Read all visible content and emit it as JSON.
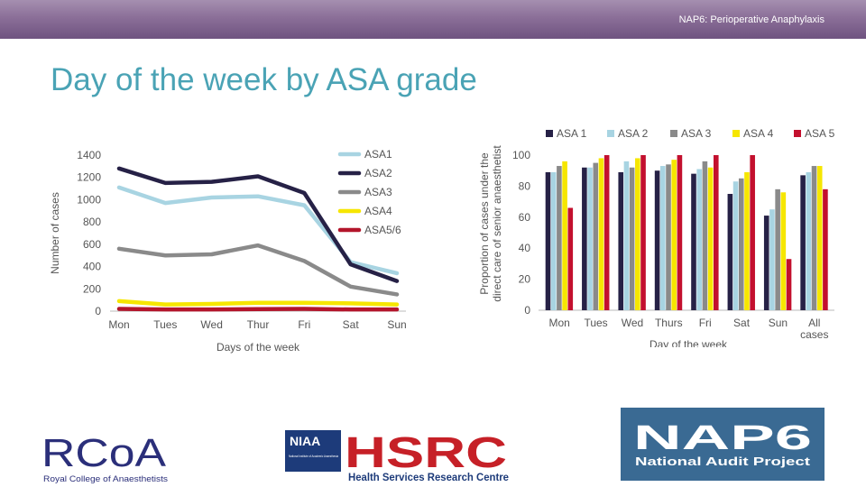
{
  "header": {
    "text": "NAP6: Perioperative Anaphylaxis"
  },
  "page": {
    "title": "Day of the week by ASA grade"
  },
  "chart_data": [
    {
      "type": "line",
      "title": "",
      "xlabel": "Days of the week",
      "ylabel": "Number of cases",
      "categories": [
        "Mon",
        "Tues",
        "Wed",
        "Thur",
        "Fri",
        "Sat",
        "Sun"
      ],
      "yticks": [
        "0",
        "200",
        "400",
        "600",
        "800",
        "1000",
        "1200",
        "1400"
      ],
      "ylim": [
        0,
        1400
      ],
      "legend_position": "top-right",
      "series": [
        {
          "name": "ASA1",
          "color": "#a8d4e2",
          "values": [
            1110,
            970,
            1020,
            1030,
            950,
            440,
            340
          ]
        },
        {
          "name": "ASA2",
          "color": "#262146",
          "values": [
            1280,
            1150,
            1160,
            1210,
            1060,
            420,
            270
          ]
        },
        {
          "name": "ASA3",
          "color": "#8a8a8a",
          "values": [
            560,
            500,
            510,
            590,
            450,
            220,
            150
          ]
        },
        {
          "name": "ASA4",
          "color": "#f6e600",
          "values": [
            90,
            60,
            65,
            75,
            75,
            70,
            60
          ]
        },
        {
          "name": "ASA5/6",
          "color": "#b3152b",
          "values": [
            20,
            15,
            15,
            18,
            20,
            15,
            15
          ]
        }
      ]
    },
    {
      "type": "bar",
      "title": "",
      "xlabel": "Day of the week",
      "ylabel": "Proportion of cases under the direct care of senior anaesthetist",
      "ylabel_lines": [
        "Proportion of cases under the",
        "direct care of senior anaesthetist"
      ],
      "categories": [
        "Mon",
        "Tues",
        "Wed",
        "Thurs",
        "Fri",
        "Sat",
        "Sun",
        "All cases"
      ],
      "category_lines": [
        [
          "Mon"
        ],
        [
          "Tues"
        ],
        [
          "Wed"
        ],
        [
          "Thurs"
        ],
        [
          "Fri"
        ],
        [
          "Sat"
        ],
        [
          "Sun"
        ],
        [
          "All",
          "cases"
        ]
      ],
      "yticks": [
        "0",
        "20",
        "40",
        "60",
        "80",
        "100"
      ],
      "ylim": [
        0,
        100
      ],
      "legend_position": "top",
      "series": [
        {
          "name": "ASA 1",
          "color": "#262146",
          "values": [
            89,
            92,
            89,
            90,
            88,
            75,
            61,
            87
          ]
        },
        {
          "name": "ASA 2",
          "color": "#a8d4e2",
          "values": [
            89,
            92,
            96,
            93,
            91,
            83,
            65,
            89
          ]
        },
        {
          "name": "ASA 3",
          "color": "#8a8a8a",
          "values": [
            93,
            95,
            92,
            94,
            96,
            85,
            78,
            93
          ]
        },
        {
          "name": "ASA 4",
          "color": "#f6e600",
          "values": [
            96,
            98,
            98,
            97,
            92,
            89,
            76,
            93
          ]
        },
        {
          "name": "ASA 5",
          "color": "#c3102e",
          "values": [
            66,
            100,
            100,
            100,
            100,
            100,
            33,
            78
          ]
        }
      ]
    }
  ],
  "logos": {
    "rcoa": {
      "mark": "RCoA",
      "caption": "Royal College of Anaesthetists"
    },
    "niaa": {
      "mark": "NIAA",
      "small": "National Institute of Academic Anaesthesia"
    },
    "hsrc": {
      "mark": "HSRC",
      "caption": "Health Services Research Centre"
    },
    "nap6": {
      "mark": "NAP6",
      "caption": "National Audit Project"
    }
  }
}
